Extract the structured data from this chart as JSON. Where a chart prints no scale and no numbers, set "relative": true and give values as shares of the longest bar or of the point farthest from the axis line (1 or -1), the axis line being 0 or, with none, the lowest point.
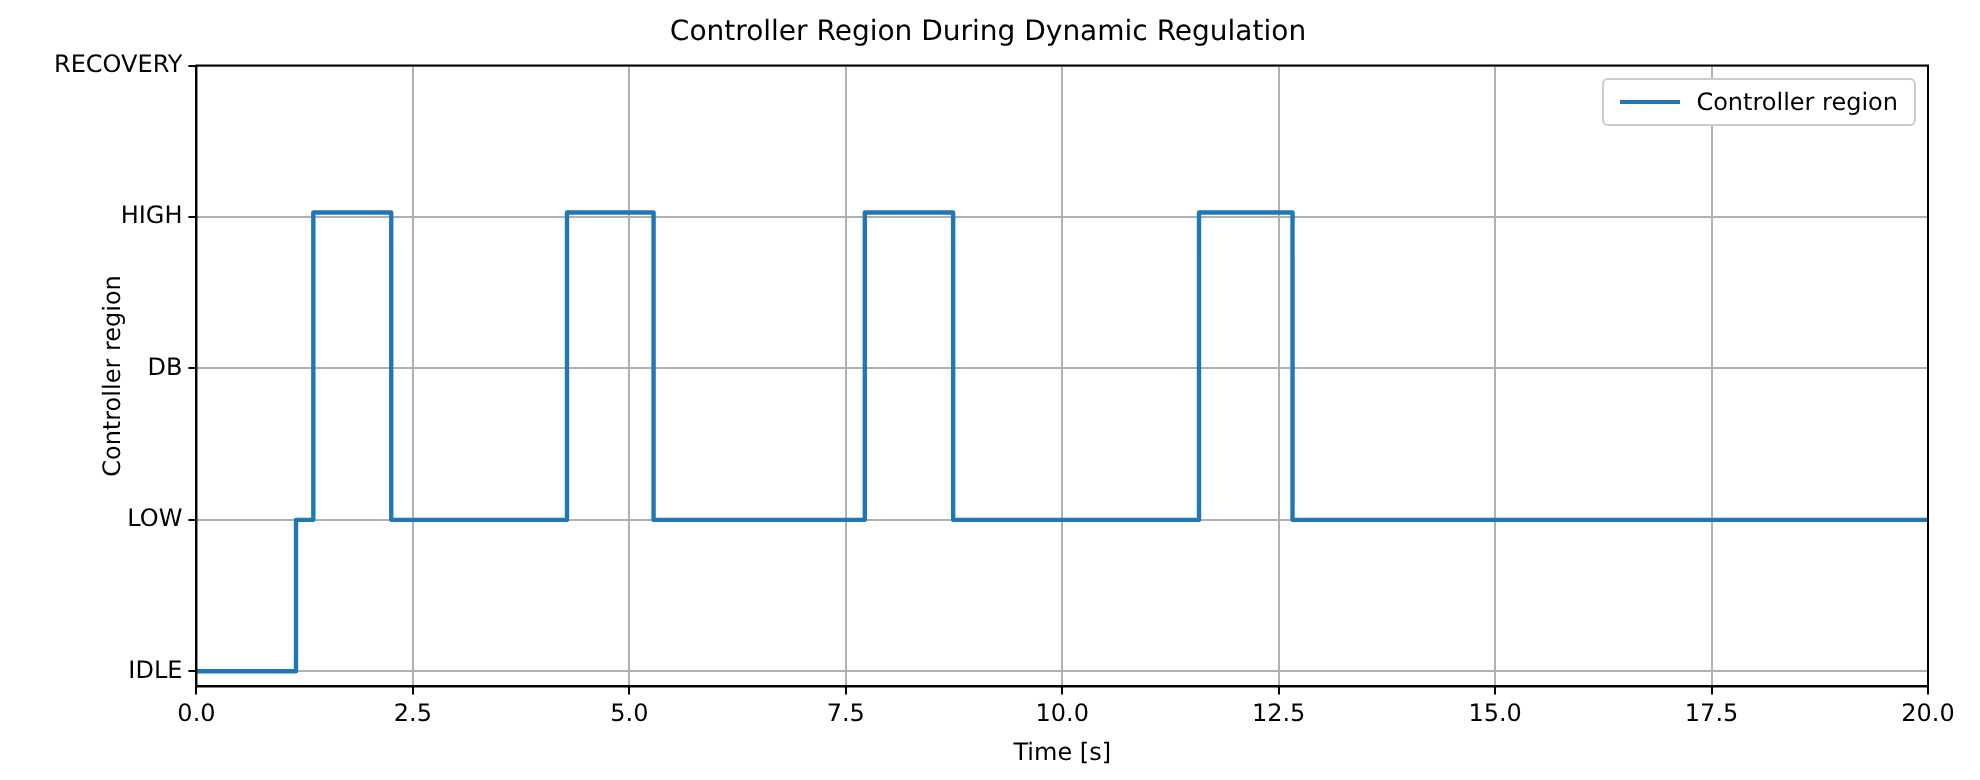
{
  "chart_data": {
    "type": "step",
    "title": "Controller Region During Dynamic Regulation",
    "xlabel": "Time [s]",
    "ylabel": "Controller region",
    "x": [
      0,
      1.15,
      1.35,
      2.25,
      4.28,
      5.28,
      7.72,
      8.74,
      11.58,
      12.66,
      20
    ],
    "y_categories": [
      "RECOVERY",
      "HIGH",
      "DB",
      "LOW",
      "IDLE"
    ],
    "relative": true,
    "series": [
      {
        "name": "Controller region",
        "color": "#1f77b4",
        "values": [
          0,
          0.33,
          1,
          0.33,
          1,
          0.33,
          1,
          0.33,
          1,
          0.33,
          0.33
        ]
      }
    ],
    "xlim": [
      0,
      20
    ],
    "xticks": [
      {
        "value": 0,
        "label": "0.0"
      },
      {
        "value": 2.5,
        "label": "2.5"
      },
      {
        "value": 5,
        "label": "5.0"
      },
      {
        "value": 7.5,
        "label": "7.5"
      },
      {
        "value": 10,
        "label": "10.0"
      },
      {
        "value": 12.5,
        "label": "12.5"
      },
      {
        "value": 15,
        "label": "15.0"
      },
      {
        "value": 17.5,
        "label": "17.5"
      },
      {
        "value": 20,
        "label": "20.0"
      }
    ],
    "grid": true,
    "legend": "top right",
    "line_style": "solid",
    "marker": "none"
  }
}
